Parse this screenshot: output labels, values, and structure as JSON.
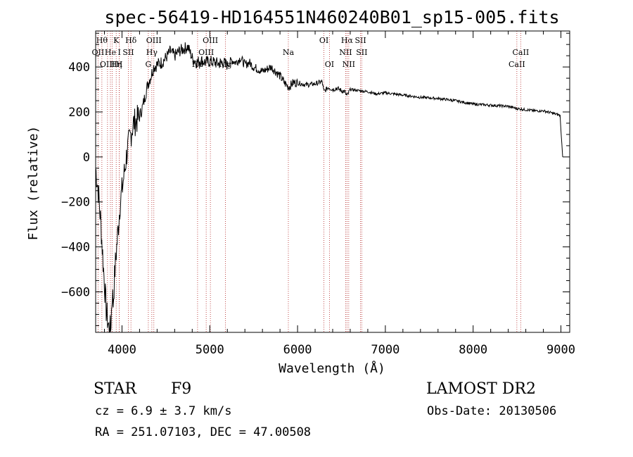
{
  "chart_data": {
    "type": "line",
    "title": "spec-56419-HD164551N460240B01_sp15-005.fits",
    "xlabel": "Wavelength (Å)",
    "ylabel": "Flux (relative)",
    "xlim": [
      3700,
      9100
    ],
    "ylim": [
      -780,
      560
    ],
    "xticks": [
      4000,
      5000,
      6000,
      7000,
      8000,
      9000
    ],
    "yticks": [
      -600,
      -400,
      -200,
      0,
      200,
      400
    ],
    "xtick_labels": [
      "4000",
      "5000",
      "6000",
      "7000",
      "8000",
      "9000"
    ],
    "ytick_labels": [
      "−600",
      "−400",
      "−200",
      "0",
      "200",
      "400"
    ],
    "series": [
      {
        "name": "flux",
        "x": [
          3700,
          3730,
          3760,
          3790,
          3820,
          3850,
          3870,
          3890,
          3900,
          3920,
          3940,
          3960,
          3980,
          4000,
          4030,
          4060,
          4100,
          4130,
          4160,
          4200,
          4240,
          4280,
          4300,
          4330,
          4360,
          4400,
          4450,
          4500,
          4550,
          4600,
          4650,
          4700,
          4750,
          4800,
          4850,
          4900,
          4950,
          5000,
          5050,
          5100,
          5150,
          5200,
          5250,
          5300,
          5350,
          5400,
          5450,
          5500,
          5550,
          5600,
          5650,
          5700,
          5750,
          5800,
          5850,
          5900,
          5950,
          6000,
          6100,
          6200,
          6280,
          6300,
          6350,
          6400,
          6450,
          6500,
          6540,
          6563,
          6600,
          6700,
          6800,
          6900,
          7000,
          7200,
          7400,
          7600,
          7800,
          8000,
          8200,
          8400,
          8500,
          8600,
          8700,
          8800,
          8900,
          8990,
          9000,
          9020
        ],
        "values": [
          -50,
          -150,
          -300,
          -500,
          -680,
          -760,
          -770,
          -600,
          -650,
          -500,
          -400,
          -300,
          -200,
          -150,
          -60,
          30,
          100,
          150,
          160,
          180,
          230,
          300,
          330,
          360,
          400,
          410,
          420,
          440,
          470,
          450,
          470,
          480,
          490,
          440,
          420,
          430,
          420,
          425,
          420,
          415,
          420,
          410,
          430,
          420,
          440,
          410,
          420,
          400,
          390,
          380,
          390,
          400,
          380,
          360,
          330,
          310,
          330,
          330,
          320,
          325,
          335,
          290,
          310,
          300,
          305,
          295,
          290,
          270,
          300,
          295,
          290,
          280,
          285,
          275,
          265,
          260,
          250,
          235,
          230,
          225,
          215,
          210,
          205,
          205,
          195,
          185,
          120,
          0
        ]
      }
    ],
    "lines": [
      {
        "x": 3771,
        "labels": [
          {
            "text": "Hθ",
            "row": 0
          }
        ]
      },
      {
        "x": 3727,
        "labels": [
          {
            "text": "OII",
            "row": 1
          }
        ]
      },
      {
        "x": 3835,
        "labels": [
          {
            "text": "OIII",
            "row": 2
          }
        ]
      },
      {
        "x": 3868,
        "labels": [
          {
            "text": "He",
            "row": 1
          }
        ]
      },
      {
        "x": 3889,
        "labels": []
      },
      {
        "x": 3934,
        "labels": [
          {
            "text": "K",
            "row": 0
          },
          {
            "text": "Hη",
            "row": 2
          }
        ]
      },
      {
        "x": 3969,
        "labels": [
          {
            "text": "H",
            "row": 2
          }
        ]
      },
      {
        "x": 3970,
        "labels": [
          {
            "text": "I",
            "row": 1
          }
        ]
      },
      {
        "x": 4072,
        "labels": [
          {
            "text": "SII",
            "row": 1
          }
        ]
      },
      {
        "x": 4102,
        "labels": [
          {
            "text": "Hδ",
            "row": 0
          }
        ]
      },
      {
        "x": 4300,
        "labels": [
          {
            "text": "G",
            "row": 2
          }
        ]
      },
      {
        "x": 4340,
        "labels": [
          {
            "text": "Hγ",
            "row": 1
          }
        ]
      },
      {
        "x": 4363,
        "labels": [
          {
            "text": "OIII",
            "row": 0
          }
        ]
      },
      {
        "x": 4861,
        "labels": [
          {
            "text": "Hβ",
            "row": 2
          }
        ]
      },
      {
        "x": 4959,
        "labels": [
          {
            "text": "OIII",
            "row": 1
          }
        ]
      },
      {
        "x": 5007,
        "labels": [
          {
            "text": "OIII",
            "row": 0
          }
        ]
      },
      {
        "x": 5178,
        "labels": [
          {
            "text": "Mg",
            "row": 2
          }
        ]
      },
      {
        "x": 5895,
        "labels": [
          {
            "text": "Na",
            "row": 1
          }
        ]
      },
      {
        "x": 6300,
        "labels": [
          {
            "text": "OI",
            "row": 0
          }
        ]
      },
      {
        "x": 6363,
        "labels": [
          {
            "text": "OI",
            "row": 2
          }
        ]
      },
      {
        "x": 6548,
        "labels": [
          {
            "text": "NII",
            "row": 1
          }
        ]
      },
      {
        "x": 6563,
        "labels": [
          {
            "text": "Hα",
            "row": 0
          }
        ]
      },
      {
        "x": 6583,
        "labels": [
          {
            "text": "NII",
            "row": 2
          }
        ]
      },
      {
        "x": 6717,
        "labels": [
          {
            "text": "SII",
            "row": 0
          }
        ]
      },
      {
        "x": 6731,
        "labels": [
          {
            "text": "SII",
            "row": 1
          }
        ]
      },
      {
        "x": 8498,
        "labels": [
          {
            "text": "CaII",
            "row": 2
          }
        ]
      },
      {
        "x": 8542,
        "labels": [
          {
            "text": "CaII",
            "row": 1
          }
        ]
      }
    ]
  },
  "info": {
    "object_class": "STAR",
    "subclass": "F9",
    "survey": "LAMOST DR2",
    "cz": "cz = 6.9 ± 3.7 km/s",
    "obs_date": "Obs-Date: 20130506",
    "coords": "RA = 251.07103, DEC =  47.00508"
  },
  "colors": {
    "axis": "#000000",
    "spectrum": "#000000",
    "line_markers": "#b22222"
  }
}
